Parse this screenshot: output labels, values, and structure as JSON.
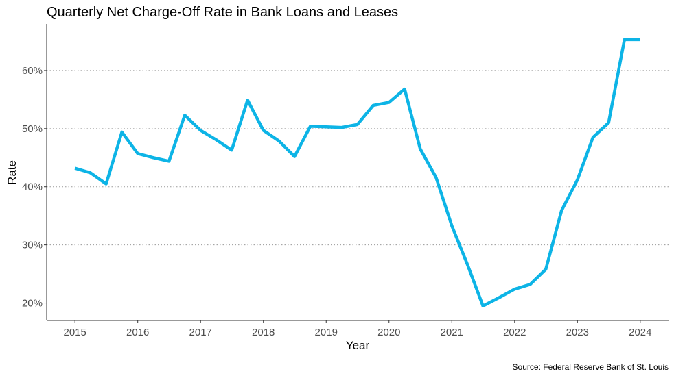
{
  "chart_data": {
    "type": "line",
    "title": "Quarterly Net Charge-Off Rate in Bank Loans and Leases",
    "xlabel": "Year",
    "ylabel": "Rate",
    "caption": "Source: Federal Reserve Bank of St. Louis",
    "x_ticks": [
      2015,
      2016,
      2017,
      2018,
      2019,
      2020,
      2021,
      2022,
      2023,
      2024
    ],
    "x_tick_labels": [
      "2015",
      "2016",
      "2017",
      "2018",
      "2019",
      "2020",
      "2021",
      "2022",
      "2023",
      "2024"
    ],
    "y_ticks": [
      0.2,
      0.3,
      0.4,
      0.5,
      0.6
    ],
    "y_tick_labels": [
      "20%",
      "30%",
      "40%",
      "50%",
      "60%"
    ],
    "xlim": [
      2014.55,
      2024.45
    ],
    "ylim": [
      0.17,
      0.68
    ],
    "grid": "horizontal dotted",
    "line_color": "#0db4e6",
    "x": [
      "2015-01-01",
      "2015-04-01",
      "2015-07-01",
      "2015-10-01",
      "2016-01-01",
      "2016-04-01",
      "2016-07-01",
      "2016-10-01",
      "2017-01-01",
      "2017-04-01",
      "2017-07-01",
      "2017-10-01",
      "2018-01-01",
      "2018-04-01",
      "2018-07-01",
      "2018-10-01",
      "2019-01-01",
      "2019-04-01",
      "2019-07-01",
      "2019-10-01",
      "2020-01-01",
      "2020-04-01",
      "2020-07-01",
      "2020-10-01",
      "2021-01-01",
      "2021-04-01",
      "2021-07-01",
      "2021-10-01",
      "2022-01-01",
      "2022-04-01",
      "2022-07-01",
      "2022-10-01",
      "2023-01-01",
      "2023-04-01",
      "2023-07-01",
      "2023-10-01",
      "2024-01-01"
    ],
    "values": [
      0.432,
      0.424,
      0.405,
      0.494,
      0.457,
      0.45,
      0.444,
      0.523,
      0.497,
      0.481,
      0.463,
      0.549,
      0.497,
      0.479,
      0.452,
      0.504,
      0.503,
      0.502,
      0.507,
      0.54,
      0.545,
      0.568,
      0.465,
      0.416,
      0.333,
      0.267,
      0.195,
      0.209,
      0.224,
      0.232,
      0.258,
      0.359,
      0.412,
      0.485,
      0.51,
      0.653,
      0.653
    ]
  }
}
